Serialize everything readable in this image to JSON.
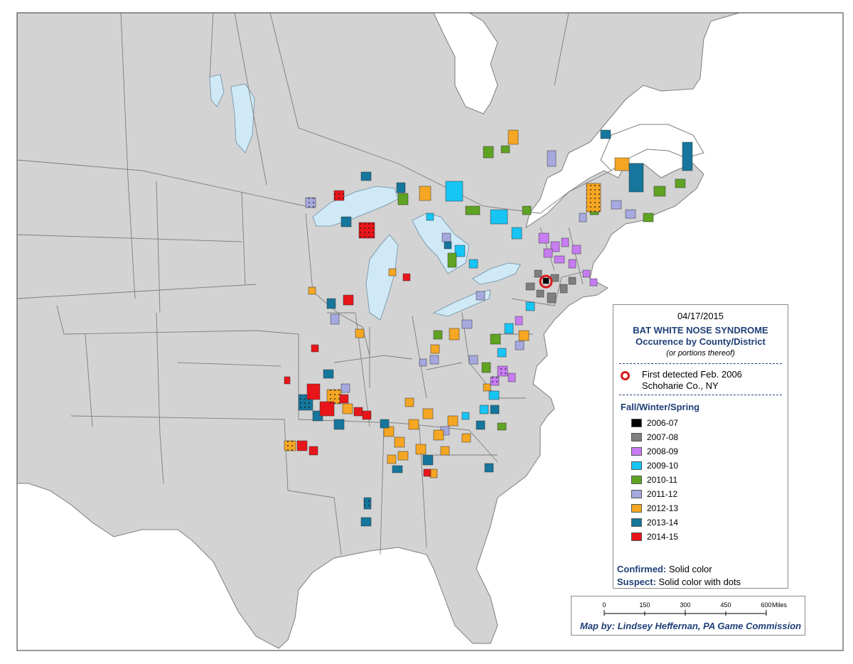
{
  "map": {
    "colors": {
      "land": "#d3d3d3",
      "water": "#ffffff",
      "lakes": "#cfe9f6",
      "borders": "#7d7d7d"
    },
    "seasons": [
      {
        "label": "2006-07",
        "color": "#000000"
      },
      {
        "label": "2007-08",
        "color": "#7f7f7f"
      },
      {
        "label": "2008-09",
        "color": "#c77cf2"
      },
      {
        "label": "2009-10",
        "color": "#17c5f5"
      },
      {
        "label": "2010-11",
        "color": "#5fa323"
      },
      {
        "label": "2011-12",
        "color": "#a5a9de"
      },
      {
        "label": "2012-13",
        "color": "#f5a623"
      },
      {
        "label": "2013-14",
        "color": "#16769c"
      },
      {
        "label": "2014-15",
        "color": "#e8161b"
      }
    ]
  },
  "legend": {
    "date": "04/17/2015",
    "title_line1": "BAT WHITE NOSE SYNDROME",
    "title_line2": "Occurence by County/District",
    "subtitle": "(or portions thereof)",
    "first_detected_line1": "First detected Feb. 2006",
    "first_detected_line2": "Schoharie Co., NY",
    "season_heading": "Fall/Winter/Spring",
    "items": [
      "2006-07",
      "2007-08",
      "2008-09",
      "2009-10",
      "2010-11",
      "2011-12",
      "2012-13",
      "2013-14",
      "2014-15"
    ],
    "confirmed_label": "Confirmed:",
    "confirmed_value": "Solid color",
    "suspect_label": "Suspect:",
    "suspect_value": "Solid color with dots"
  },
  "scale": {
    "ticks": [
      "0",
      "150",
      "300",
      "450",
      "600"
    ],
    "unit": "Miles",
    "credit": "Map by: Lindsey Heffernan, PA Game Commission"
  }
}
